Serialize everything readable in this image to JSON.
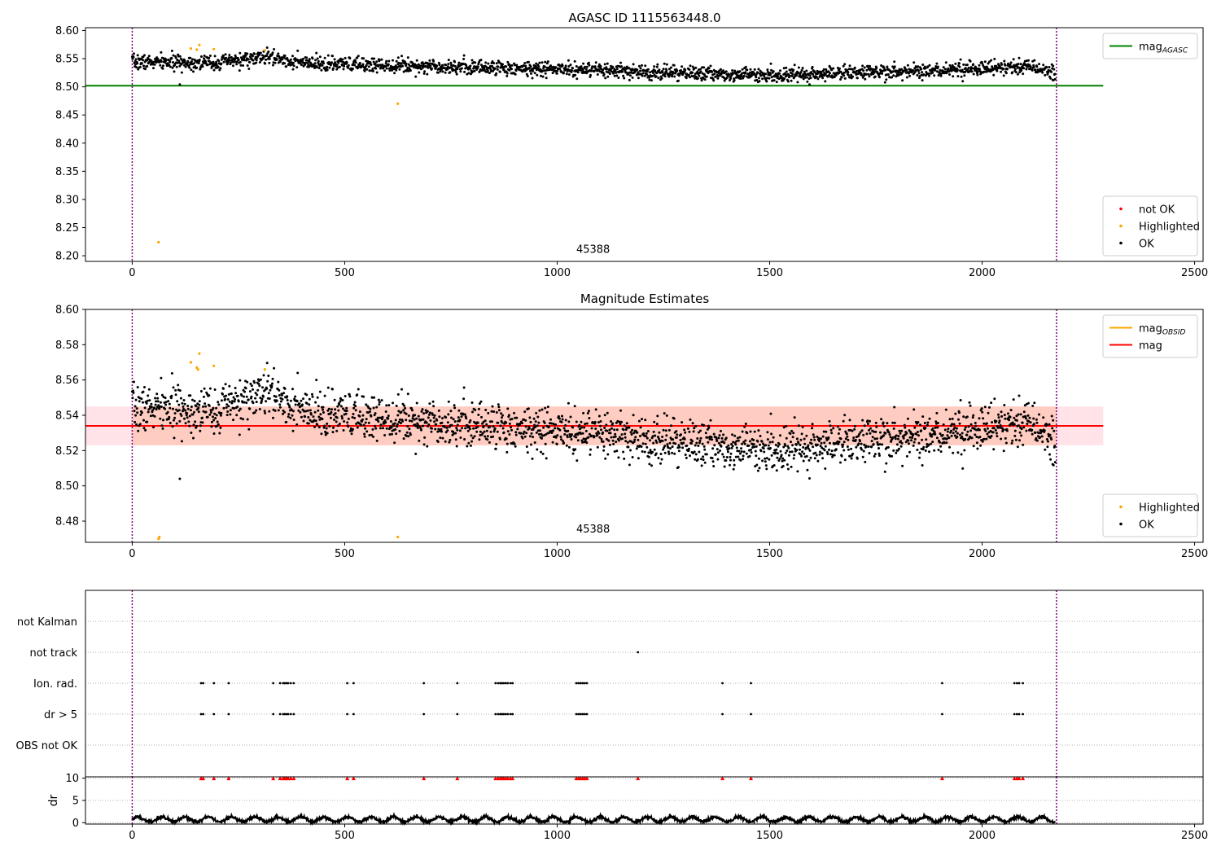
{
  "chart_data": [
    {
      "type": "scatter",
      "title": "AGASC ID 1115563448.0",
      "xlim": [
        -110,
        2520
      ],
      "ylim": [
        8.19,
        8.605
      ],
      "xticks": [
        0,
        500,
        1000,
        1500,
        2000,
        2500
      ],
      "yticks": [
        8.2,
        8.25,
        8.3,
        8.35,
        8.4,
        8.45,
        8.5,
        8.55,
        8.6
      ],
      "ytick_decimals": 2,
      "annotation": {
        "text": "45388",
        "x": 1045,
        "y": 8.205
      },
      "vlines": [
        0,
        2175
      ],
      "vline_color": "#800080",
      "lines": [
        {
          "name": "mag",
          "sub": "AGASC",
          "color": "#008000",
          "x": [
            -110,
            2285
          ],
          "y": [
            8.502,
            8.502
          ]
        }
      ],
      "series_params": {
        "n": 2176,
        "x_start": 0,
        "x_end": 2172,
        "seed": 7,
        "profile": [
          [
            0,
            8.544
          ],
          [
            200,
            8.543
          ],
          [
            320,
            8.553
          ],
          [
            420,
            8.54
          ],
          [
            600,
            8.539
          ],
          [
            800,
            8.535
          ],
          [
            1000,
            8.531
          ],
          [
            1200,
            8.526
          ],
          [
            1500,
            8.521
          ],
          [
            1800,
            8.527
          ],
          [
            2000,
            8.532
          ],
          [
            2100,
            8.537
          ],
          [
            2175,
            8.524
          ]
        ],
        "noise": 0.0065,
        "color": "#000000",
        "name": "OK"
      },
      "highlighted": {
        "name": "Highlighted",
        "color": "#ffa500",
        "x": [
          62,
          138,
          152,
          158,
          192,
          312,
          625
        ],
        "y": [
          8.224,
          8.568,
          8.566,
          8.574,
          8.567,
          8.565,
          8.47
        ]
      },
      "outliers": {
        "x": [
          112
        ],
        "y": [
          8.504
        ]
      },
      "legends": [
        {
          "position": "upper-right",
          "entries": [
            {
              "kind": "line",
              "label": "mag",
              "sub": "AGASC",
              "color": "#008000"
            }
          ]
        },
        {
          "position": "lower-right",
          "entries": [
            {
              "kind": "dot",
              "label": "not OK",
              "color": "#ff0000"
            },
            {
              "kind": "dot",
              "label": "Highlighted",
              "color": "#ffa500"
            },
            {
              "kind": "dot",
              "label": "OK",
              "color": "#000000"
            }
          ]
        }
      ]
    },
    {
      "type": "scatter",
      "title": "Magnitude Estimates",
      "xlim": [
        -110,
        2520
      ],
      "ylim": [
        8.468,
        8.6
      ],
      "xticks": [
        0,
        500,
        1000,
        1500,
        2000,
        2500
      ],
      "yticks": [
        8.48,
        8.5,
        8.52,
        8.54,
        8.56,
        8.58,
        8.6
      ],
      "ytick_decimals": 2,
      "annotation": {
        "text": "45388",
        "x": 1045,
        "y": 8.4735
      },
      "vlines": [
        0,
        2175
      ],
      "vline_color": "#800080",
      "bands": [
        {
          "x": [
            -110,
            2285
          ],
          "y": [
            8.523,
            8.545
          ],
          "color": "#ffc0cb",
          "opacity": 0.45
        },
        {
          "x": [
            0,
            2175
          ],
          "y": [
            8.523,
            8.545
          ],
          "color": "#ffa07a",
          "opacity": 0.35
        }
      ],
      "lines": [
        {
          "name": "mag",
          "color": "#ff0000",
          "x": [
            -110,
            2285
          ],
          "y": [
            8.534,
            8.534
          ]
        }
      ],
      "highlighted": {
        "name": "Highlighted",
        "color": "#ffa500",
        "x": [
          62,
          64,
          138,
          152,
          155,
          158,
          192,
          312,
          625
        ],
        "y": [
          8.47,
          8.471,
          8.57,
          8.567,
          8.566,
          8.575,
          8.568,
          8.566,
          8.471
        ]
      },
      "outliers": {
        "x": [
          112
        ],
        "y": [
          8.504
        ]
      },
      "legends": [
        {
          "position": "upper-right",
          "entries": [
            {
              "kind": "line",
              "label": "mag",
              "sub": "OBSID",
              "color": "#ffa500"
            },
            {
              "kind": "line",
              "label": "mag",
              "color": "#ff0000"
            }
          ]
        },
        {
          "position": "lower-right",
          "entries": [
            {
              "kind": "dot",
              "label": "Highlighted",
              "color": "#ffa500"
            },
            {
              "kind": "dot",
              "label": "OK",
              "color": "#000000"
            }
          ]
        }
      ]
    },
    {
      "type": "scatter",
      "xlim": [
        -110,
        2520
      ],
      "categories": [
        "not Kalman",
        "not track",
        "Ion. rad.",
        "dr > 5",
        "OBS not OK"
      ],
      "vlines": [
        0,
        2175
      ],
      "vline_color": "#800080",
      "flags": [
        {
          "category": "not track",
          "x": [
            1190
          ]
        },
        {
          "category": "Ion. rad.",
          "x": [
            162,
            167,
            192,
            227,
            332,
            348,
            355,
            359,
            363,
            367,
            373,
            380,
            506,
            521,
            686,
            765,
            855,
            861,
            866,
            870,
            874,
            879,
            884,
            890,
            895,
            1045,
            1050,
            1055,
            1060,
            1065,
            1070,
            1389,
            1456,
            1906,
            2076,
            2082,
            2087,
            2096
          ]
        },
        {
          "category": "dr > 5",
          "x": [
            162,
            167,
            192,
            227,
            332,
            348,
            355,
            359,
            363,
            367,
            373,
            380,
            506,
            521,
            686,
            765,
            855,
            861,
            866,
            870,
            874,
            879,
            884,
            890,
            895,
            1045,
            1050,
            1055,
            1060,
            1065,
            1070,
            1389,
            1456,
            1906,
            2076,
            2082,
            2087,
            2096
          ]
        }
      ]
    },
    {
      "type": "line",
      "xlim": [
        -110,
        2520
      ],
      "ylim": [
        -0.3,
        10.3
      ],
      "ylabel": "dr",
      "xticks": [
        0,
        500,
        1000,
        1500,
        2000,
        2500
      ],
      "yticks": [
        0,
        5,
        10
      ],
      "vlines": [
        0,
        2175
      ],
      "vline_color": "#800080",
      "series_params": {
        "n": 2176,
        "x_start": 0,
        "x_end": 2172,
        "mean": 0.75,
        "amp": 0.55,
        "seed": 11,
        "color": "#000000"
      },
      "flagged_markers": {
        "color": "#ff0000",
        "y": 10,
        "x": [
          162,
          167,
          192,
          227,
          332,
          348,
          355,
          359,
          363,
          367,
          373,
          380,
          506,
          521,
          686,
          765,
          855,
          861,
          866,
          870,
          874,
          879,
          884,
          890,
          895,
          1045,
          1050,
          1055,
          1060,
          1065,
          1070,
          1190,
          1389,
          1456,
          1906,
          2076,
          2082,
          2087,
          2096
        ]
      }
    }
  ]
}
